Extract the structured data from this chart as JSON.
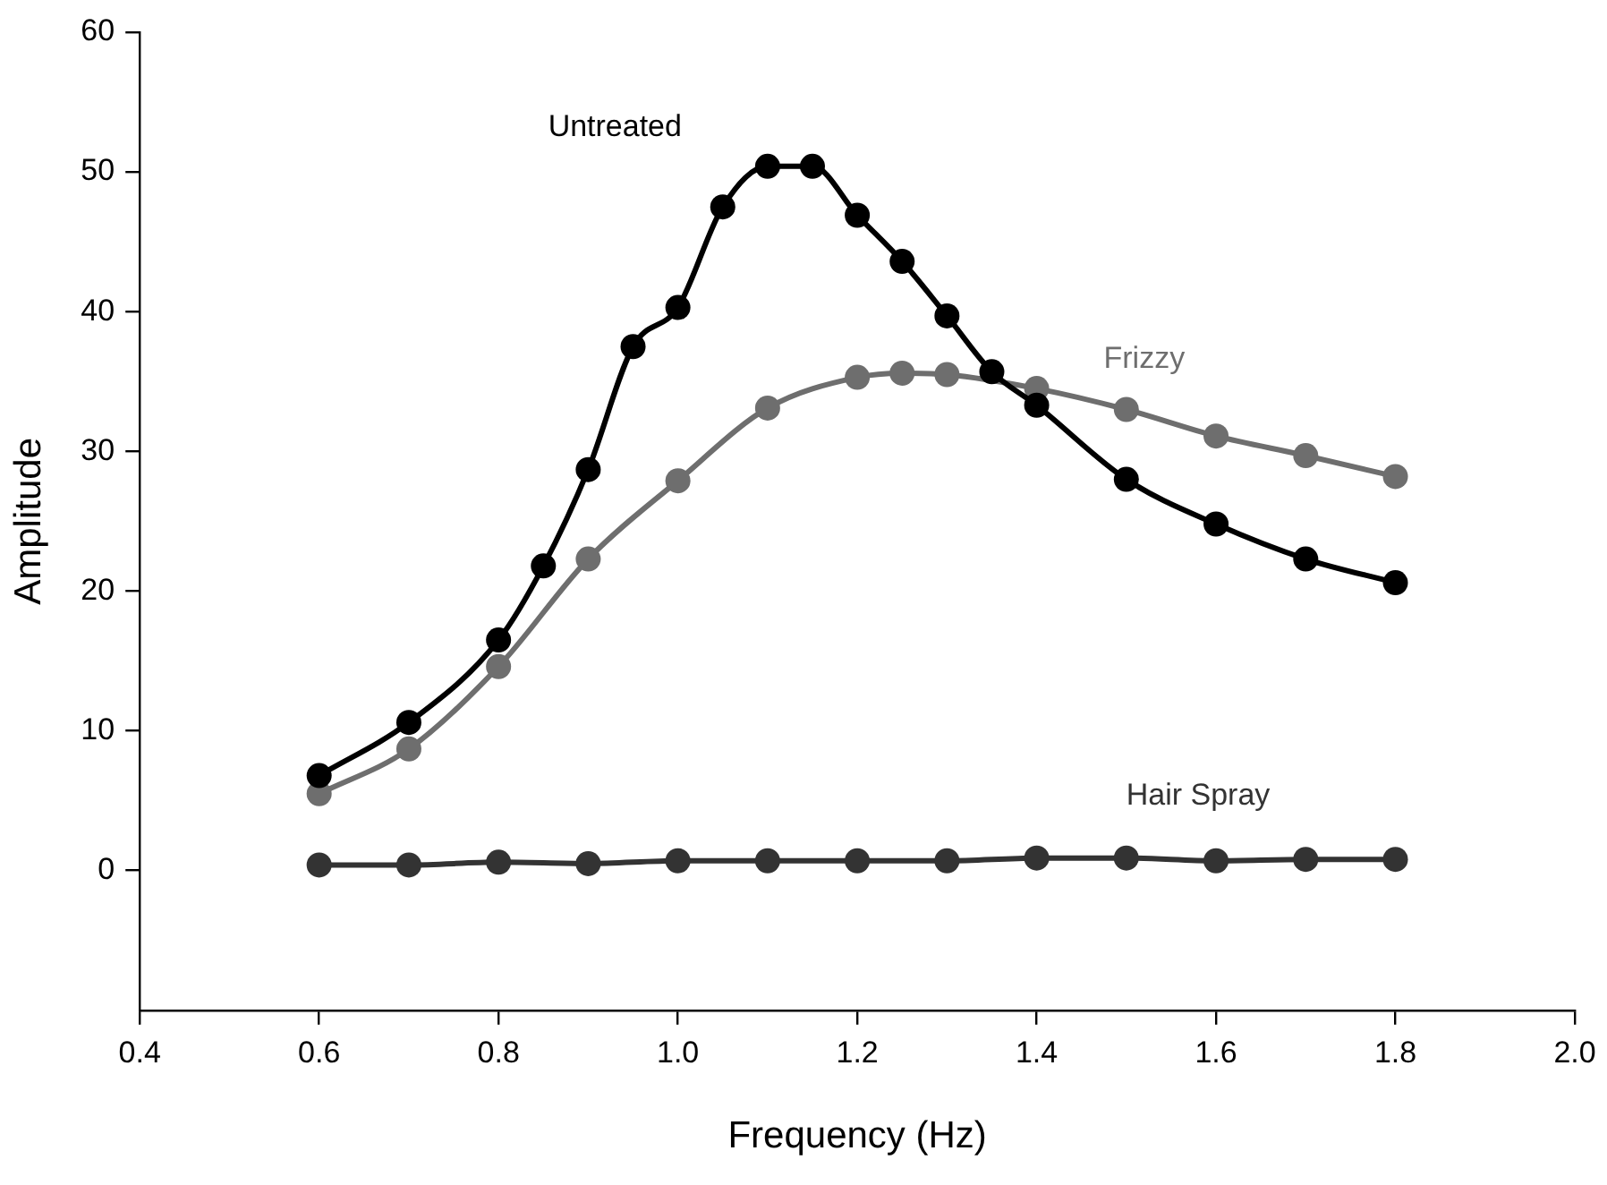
{
  "chart_data": {
    "type": "line",
    "xlabel": "Frequency (Hz)",
    "ylabel": "Amplitude",
    "xlim": [
      0.4,
      2.0
    ],
    "xticks": [
      {
        "value": 0.4,
        "label": "0.4"
      },
      {
        "value": 0.6,
        "label": "0.6"
      },
      {
        "value": 0.8,
        "label": "0.8"
      },
      {
        "value": 1.0,
        "label": "1.0"
      },
      {
        "value": 1.2,
        "label": "1.2"
      },
      {
        "value": 1.4,
        "label": "1.4"
      },
      {
        "value": 1.6,
        "label": "1.6"
      },
      {
        "value": 1.8,
        "label": "1.8"
      },
      {
        "value": 2.0,
        "label": "2.0"
      }
    ],
    "ylim": [
      -10,
      60
    ],
    "yticks": [
      0,
      10,
      20,
      30,
      40,
      50,
      60
    ],
    "grid": false,
    "legend": false,
    "marker": "circle",
    "line_style": "solid",
    "series": [
      {
        "name": "Untreated",
        "color": "#000000",
        "x": [
          0.6,
          0.7,
          0.8,
          0.85,
          0.9,
          0.95,
          1.0,
          1.05,
          1.1,
          1.15,
          1.2,
          1.25,
          1.3,
          1.35,
          1.4,
          1.5,
          1.6,
          1.7,
          1.8
        ],
        "values": [
          6.8,
          10.6,
          16.5,
          21.8,
          28.7,
          37.5,
          40.3,
          47.5,
          50.4,
          50.4,
          46.9,
          43.6,
          39.7,
          35.7,
          33.3,
          28.0,
          24.8,
          22.3,
          20.6
        ]
      },
      {
        "name": "Frizzy",
        "color": "#6e6e6e",
        "x": [
          0.6,
          0.7,
          0.8,
          0.9,
          1.0,
          1.1,
          1.2,
          1.25,
          1.3,
          1.4,
          1.5,
          1.6,
          1.7,
          1.8
        ],
        "values": [
          5.5,
          8.7,
          14.6,
          22.3,
          27.9,
          33.1,
          35.3,
          35.6,
          35.5,
          34.5,
          33.0,
          31.1,
          29.7,
          28.2
        ]
      },
      {
        "name": "Hair Spray",
        "color": "#333333",
        "x": [
          0.6,
          0.7,
          0.8,
          0.9,
          1.0,
          1.1,
          1.2,
          1.3,
          1.4,
          1.5,
          1.6,
          1.7,
          1.8
        ],
        "values": [
          0.4,
          0.4,
          0.6,
          0.5,
          0.7,
          0.7,
          0.7,
          0.7,
          0.9,
          0.9,
          0.7,
          0.8,
          0.8
        ]
      }
    ]
  }
}
